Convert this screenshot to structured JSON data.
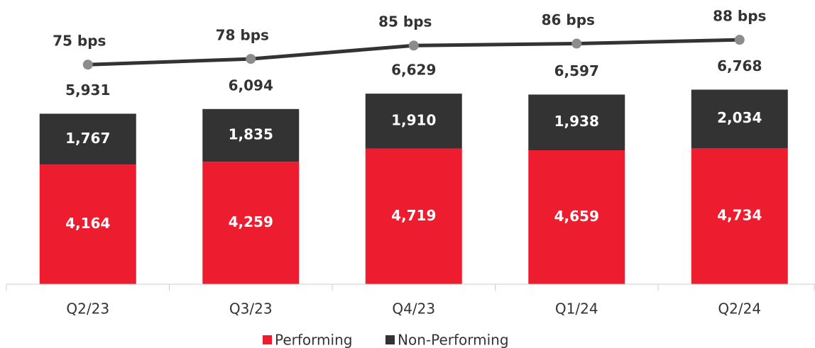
{
  "chart_data": {
    "type": "stacked-bar-line",
    "categories": [
      "Q2/23",
      "Q3/23",
      "Q4/23",
      "Q1/24",
      "Q2/24"
    ],
    "series": [
      {
        "name": "Performing",
        "color": "#ed1c2e",
        "values": [
          4164,
          4259,
          4719,
          4659,
          4734
        ],
        "value_labels": [
          "4,164",
          "4,259",
          "4,719",
          "4,659",
          "4,734"
        ]
      },
      {
        "name": "Non-Performing",
        "color": "#333333",
        "values": [
          1767,
          1835,
          1910,
          1938,
          2034
        ],
        "value_labels": [
          "1,767",
          "1,835",
          "1,910",
          "1,938",
          "2,034"
        ]
      },
      {
        "type": "line",
        "axis": "y2",
        "color": "#333333",
        "marker_color": "#8c8c8c",
        "values": [
          75,
          78,
          85,
          86,
          88
        ],
        "value_labels": [
          "75 bps",
          "78 bps",
          "85 bps",
          "86 bps",
          "88 bps"
        ]
      }
    ],
    "totals": [
      5931,
      6094,
      6629,
      6597,
      6768
    ],
    "total_labels": [
      "5,931",
      "6,094",
      "6,629",
      "6,597",
      "6,768"
    ],
    "ylim": [
      0,
      8900
    ],
    "y2lim": [
      -40,
      94
    ],
    "legend": "bottom"
  }
}
